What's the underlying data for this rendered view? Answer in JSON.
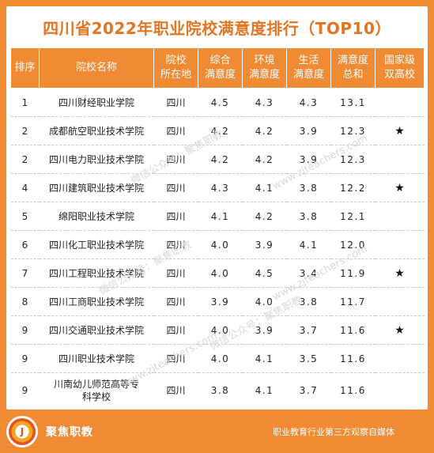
{
  "title": "四川省2022年职业院校满意度排行（TOP10）",
  "headers": {
    "rank": "排序",
    "name": "院校名称",
    "loc": [
      "院校",
      "所在地"
    ],
    "overall": [
      "综合",
      "满意度"
    ],
    "env": [
      "环境",
      "满意度"
    ],
    "life": [
      "生活",
      "满意度"
    ],
    "total": [
      "满意度",
      "总和"
    ],
    "national": [
      "国家级",
      "双高校"
    ]
  },
  "rows": [
    {
      "rank": "1",
      "name": "四川财经职业学院",
      "loc": "四川",
      "overall": "4.5",
      "env": "4.3",
      "life": "4.3",
      "total": "13.1",
      "star": ""
    },
    {
      "rank": "2",
      "name": "成都航空职业技术学院",
      "loc": "四川",
      "overall": "4.2",
      "env": "4.2",
      "life": "3.9",
      "total": "12.3",
      "star": "★"
    },
    {
      "rank": "2",
      "name": "四川电力职业技术学院",
      "loc": "四川",
      "overall": "4.2",
      "env": "4.2",
      "life": "3.9",
      "total": "12.3",
      "star": ""
    },
    {
      "rank": "4",
      "name": "四川建筑职业技术学院",
      "loc": "四川",
      "overall": "4.3",
      "env": "4.1",
      "life": "3.8",
      "total": "12.2",
      "star": "★"
    },
    {
      "rank": "5",
      "name": "绵阳职业技术学院",
      "loc": "四川",
      "overall": "4.1",
      "env": "4.2",
      "life": "3.8",
      "total": "12.1",
      "star": ""
    },
    {
      "rank": "6",
      "name": "四川化工职业技术学院",
      "loc": "四川",
      "overall": "4.0",
      "env": "3.9",
      "life": "4.1",
      "total": "12.0",
      "star": ""
    },
    {
      "rank": "7",
      "name": "四川工程职业技术学院",
      "loc": "四川",
      "overall": "4.0",
      "env": "4.5",
      "life": "3.4",
      "total": "11.9",
      "star": "★"
    },
    {
      "rank": "8",
      "name": "四川工商职业技术学院",
      "loc": "四川",
      "overall": "3.9",
      "env": "4.0",
      "life": "3.8",
      "total": "11.7",
      "star": ""
    },
    {
      "rank": "9",
      "name": "四川交通职业技术学院",
      "loc": "四川",
      "overall": "4.0",
      "env": "3.9",
      "life": "3.7",
      "total": "11.6",
      "star": "★"
    },
    {
      "rank": "9",
      "name": "四川职业技术学院",
      "loc": "四川",
      "overall": "4.0",
      "env": "4.1",
      "life": "3.5",
      "total": "11.6",
      "star": ""
    },
    {
      "rank": "9",
      "name": "川南幼儿师范高等专科学校",
      "loc": "四川",
      "overall": "3.8",
      "env": "4.1",
      "life": "3.7",
      "total": "11.6",
      "star": ""
    }
  ],
  "watermarks": [
    "微信公众号：聚焦职教",
    "www.zjteachers.com",
    "微信公众号：聚焦职教",
    "www.zjteachers.com",
    "微信公众号：聚焦职教",
    "www.zjteachers.com"
  ],
  "footer": {
    "logo_letter": "J",
    "brand": "聚焦职教",
    "slogan": "职业教育行业第三方观察自媒体"
  }
}
